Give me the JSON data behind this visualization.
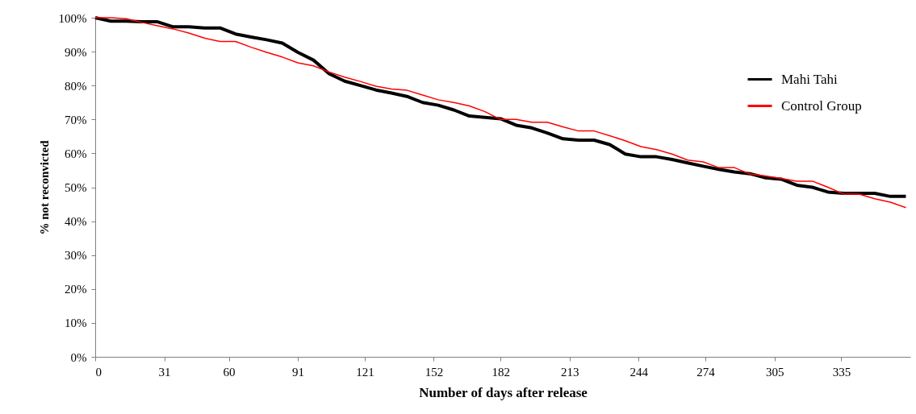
{
  "chart_data": {
    "type": "line",
    "xlabel": "Number of days after release",
    "ylabel": "% not reconvicted",
    "x": [
      0,
      7,
      14,
      21,
      28,
      35,
      42,
      49,
      56,
      63,
      70,
      77,
      84,
      91,
      98,
      105,
      112,
      119,
      126,
      133,
      140,
      147,
      154,
      161,
      168,
      175,
      182,
      189,
      196,
      203,
      210,
      217,
      224,
      231,
      238,
      245,
      252,
      259,
      266,
      273,
      280,
      287,
      294,
      301,
      308,
      315,
      322,
      329,
      336,
      343,
      350,
      357,
      364
    ],
    "series": [
      {
        "name": "Mahi Tahi",
        "color": "#000000",
        "values": [
          100,
          99,
          99,
          98.8,
          98.8,
          97.3,
          97.3,
          97,
          97,
          95.2,
          94.3,
          93.5,
          92.5,
          89.8,
          87.5,
          83.5,
          81.3,
          80,
          78.7,
          77.8,
          76.8,
          75,
          74.2,
          72.8,
          71,
          70.6,
          70.2,
          68.3,
          67.5,
          66,
          64.3,
          63.9,
          63.9,
          62.6,
          59.8,
          59,
          59,
          58.2,
          57.2,
          56.2,
          55.3,
          54.5,
          54,
          52.8,
          52.4,
          50.6,
          50,
          48.6,
          48.2,
          48.2,
          48.2,
          47.3,
          47.3
        ]
      },
      {
        "name": "Control Group",
        "color": "#ff0000",
        "values": [
          100,
          100,
          99.7,
          98.6,
          97.6,
          96.7,
          95.5,
          94,
          93,
          93,
          91.3,
          89.8,
          88.4,
          86.7,
          85.8,
          84,
          82.5,
          81.2,
          79.8,
          79,
          78.6,
          77.2,
          75.8,
          75,
          74,
          72.3,
          70,
          70,
          69.2,
          69.2,
          67.8,
          66.6,
          66.6,
          65.2,
          63.7,
          62,
          61.1,
          59.8,
          58,
          57.5,
          55.8,
          55.8,
          53.9,
          53.3,
          52.6,
          51.8,
          51.8,
          50,
          48,
          48,
          46.6,
          45.6,
          44
        ]
      }
    ],
    "xlim": [
      0,
      366
    ],
    "xticks": [
      0,
      31,
      60,
      91,
      121,
      152,
      182,
      213,
      244,
      274,
      305,
      335
    ],
    "ylim": [
      0,
      100
    ],
    "yticks": [
      {
        "value": 0,
        "label": "0%"
      },
      {
        "value": 10,
        "label": "10%"
      },
      {
        "value": 20,
        "label": "20%"
      },
      {
        "value": 30,
        "label": "30%"
      },
      {
        "value": 40,
        "label": "40%"
      },
      {
        "value": 50,
        "label": "50%"
      },
      {
        "value": 60,
        "label": "60%"
      },
      {
        "value": 70,
        "label": "70%"
      },
      {
        "value": 80,
        "label": "80%"
      },
      {
        "value": 90,
        "label": "90%"
      },
      {
        "value": 100,
        "label": "100%"
      }
    ],
    "legend": "top right",
    "grid": false
  }
}
